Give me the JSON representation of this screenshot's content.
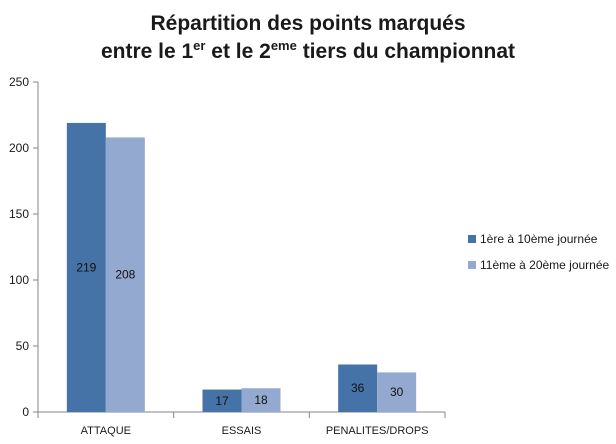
{
  "chart_data": {
    "type": "bar",
    "title": {
      "line1": "Répartition des points marqués",
      "line2": {
        "pre": "entre le 1",
        "sup1": "er",
        "mid": " et le 2",
        "sup2": "eme",
        "post": " tiers du championnat"
      }
    },
    "categories": [
      "ATTAQUE",
      "ESSAIS",
      "PENALITES/DROPS"
    ],
    "series": [
      {
        "name": "1ère à 10ème journée",
        "color": "#4572A7",
        "values": [
          219,
          17,
          36
        ],
        "labels": [
          "219",
          "17",
          "36"
        ]
      },
      {
        "name": "11ème à 20ème journée",
        "color": "#93A9CF",
        "values": [
          208,
          18,
          30
        ],
        "labels": [
          "208",
          "18",
          "30"
        ]
      }
    ],
    "ylim": [
      0,
      250
    ],
    "yticks": [
      "0",
      "50",
      "100",
      "150",
      "200",
      "250"
    ],
    "ytick_values": [
      0,
      50,
      100,
      150,
      200,
      250
    ],
    "grid": false,
    "legend_position": "right",
    "axis_color": "#868686"
  }
}
